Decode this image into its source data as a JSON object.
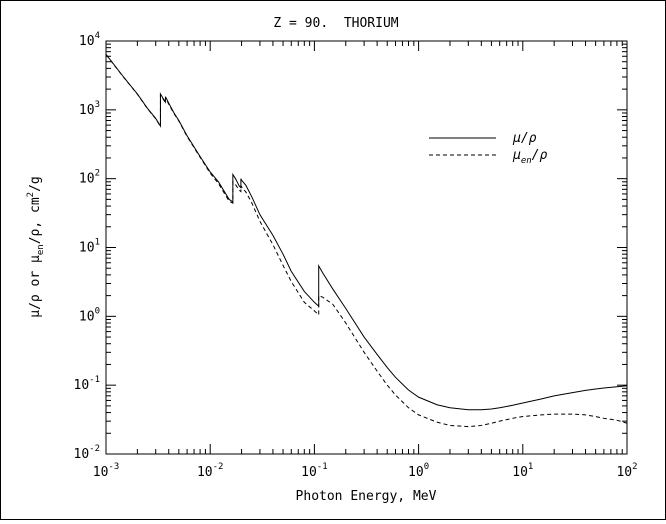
{
  "chart_data": {
    "type": "line",
    "title": "Z = 90.  THORIUM",
    "xlabel": "Photon Energy, MeV",
    "ylabel": {
      "pre": "μ/ρ or μ",
      "sub": "en",
      "mid": "/ρ, cm",
      "sup": "2",
      "post": "/g"
    },
    "x_scale": "log",
    "y_scale": "log",
    "xlim": [
      0.001,
      100
    ],
    "ylim": [
      0.01,
      10000
    ],
    "x_ticks": [
      {
        "base": "10",
        "exp": "-3"
      },
      {
        "base": "10",
        "exp": "-2"
      },
      {
        "base": "10",
        "exp": "-1"
      },
      {
        "base": "10",
        "exp": "0"
      },
      {
        "base": "10",
        "exp": "1"
      },
      {
        "base": "10",
        "exp": "2"
      }
    ],
    "y_ticks": [
      {
        "base": "10",
        "exp": "-2"
      },
      {
        "base": "10",
        "exp": "-1"
      },
      {
        "base": "10",
        "exp": "0"
      },
      {
        "base": "10",
        "exp": "1"
      },
      {
        "base": "10",
        "exp": "2"
      },
      {
        "base": "10",
        "exp": "3"
      },
      {
        "base": "10",
        "exp": "4"
      }
    ],
    "grid": false,
    "legend_position": "top-right",
    "series": [
      {
        "name": "μ/ρ",
        "style": "solid",
        "x": [
          0.001,
          0.0015,
          0.002,
          0.0025,
          0.003,
          0.00333,
          0.00333,
          0.0035,
          0.00372,
          0.00372,
          0.004,
          0.0045,
          0.005,
          0.006,
          0.008,
          0.01,
          0.012,
          0.0152,
          0.0165,
          0.0165,
          0.0175,
          0.019,
          0.0197,
          0.0197,
          0.02,
          0.022,
          0.025,
          0.03,
          0.04,
          0.05,
          0.06,
          0.08,
          0.1,
          0.11,
          0.11,
          0.12,
          0.15,
          0.2,
          0.3,
          0.4,
          0.5,
          0.6,
          0.8,
          1,
          1.5,
          2,
          3,
          4,
          5,
          6,
          8,
          10,
          15,
          20,
          30,
          40,
          50,
          60,
          80,
          100
        ],
        "y": [
          6400,
          2900,
          1700,
          1050,
          750,
          580,
          1700,
          1500,
          1300,
          1550,
          1250,
          900,
          700,
          420,
          210,
          125,
          90,
          50,
          46,
          115,
          100,
          78,
          74,
          100,
          95,
          80,
          55,
          30,
          15,
          8,
          4.5,
          2.3,
          1.6,
          1.4,
          5.4,
          4.3,
          2.5,
          1.3,
          0.5,
          0.28,
          0.18,
          0.13,
          0.085,
          0.067,
          0.052,
          0.047,
          0.044,
          0.044,
          0.045,
          0.047,
          0.051,
          0.055,
          0.063,
          0.07,
          0.078,
          0.084,
          0.088,
          0.091,
          0.095,
          0.098
        ]
      },
      {
        "name": "μen/ρ",
        "name_parts": {
          "pre": "μ",
          "sub": "en",
          "post": "/ρ"
        },
        "style": "dashed",
        "x": [
          0.001,
          0.0015,
          0.002,
          0.0025,
          0.003,
          0.00333,
          0.00333,
          0.0035,
          0.00372,
          0.00372,
          0.004,
          0.0045,
          0.005,
          0.006,
          0.008,
          0.01,
          0.012,
          0.0152,
          0.0165,
          0.0165,
          0.0175,
          0.019,
          0.0197,
          0.0197,
          0.02,
          0.022,
          0.025,
          0.03,
          0.04,
          0.05,
          0.06,
          0.08,
          0.1,
          0.11,
          0.11,
          0.12,
          0.15,
          0.2,
          0.3,
          0.4,
          0.5,
          0.6,
          0.8,
          1,
          1.5,
          2,
          3,
          4,
          5,
          6,
          8,
          10,
          15,
          20,
          30,
          40,
          50,
          60,
          80,
          100
        ],
        "y": [
          6350,
          2880,
          1690,
          1040,
          740,
          575,
          1650,
          1460,
          1270,
          1500,
          1210,
          880,
          690,
          410,
          205,
          120,
          85,
          47,
          44,
          90,
          82,
          68,
          65,
          80,
          76,
          64,
          45,
          24,
          11,
          5.5,
          3.2,
          1.6,
          1.2,
          1.05,
          2,
          1.9,
          1.5,
          0.8,
          0.3,
          0.16,
          0.1,
          0.072,
          0.047,
          0.037,
          0.029,
          0.026,
          0.025,
          0.026,
          0.028,
          0.03,
          0.033,
          0.035,
          0.037,
          0.038,
          0.038,
          0.037,
          0.035,
          0.033,
          0.031,
          0.028
        ]
      }
    ]
  }
}
